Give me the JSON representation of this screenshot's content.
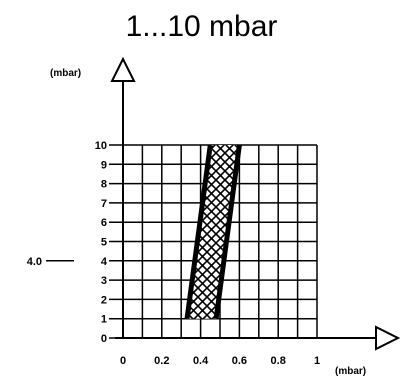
{
  "chart_data": {
    "type": "area",
    "title": "1...10 mbar",
    "y_unit_label": "(mbar)",
    "x_unit_label": "(mbar)",
    "xlim": [
      0,
      1
    ],
    "ylim": [
      0,
      10
    ],
    "grid": true,
    "x_ticks": [
      "0",
      "0.2",
      "0.4",
      "0.6",
      "0.8",
      "1"
    ],
    "y_ticks": [
      "0",
      "1",
      "2",
      "3",
      "4",
      "5",
      "6",
      "7",
      "8",
      "9",
      "10"
    ],
    "band": {
      "lower_edge": [
        [
          0.33,
          1
        ],
        [
          0.45,
          10
        ]
      ],
      "upper_edge": [
        [
          0.48,
          1
        ],
        [
          0.6,
          10
        ]
      ]
    },
    "annotation": {
      "label": "4.0",
      "y": 4
    }
  },
  "colors": {
    "ink": "#000000",
    "background": "#ffffff"
  }
}
